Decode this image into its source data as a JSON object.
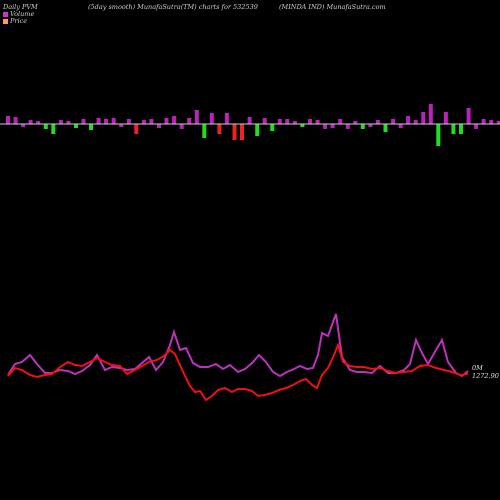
{
  "header": {
    "left": "Daily PVM",
    "middle": "(5day smooth) MunafaSutra(TM) charts for 532539",
    "right": "(MINDA IND) MunafaSutra.com"
  },
  "legend": {
    "volume_label": "Volume",
    "price_label": "Price",
    "volume_color": "#cc33cc",
    "price_color": "#ff9966"
  },
  "last_label": "0M 1272.90",
  "colors": {
    "background": "#000000",
    "baseline": "#cccccc",
    "bar_up": "#bb22bb",
    "bar_down_green": "#22dd22",
    "bar_down_red": "#ee2222",
    "price_line": "#ee1111",
    "volume_line": "#bb33bb"
  },
  "chart_data": {
    "type": "line",
    "bars": [
      {
        "v": 8,
        "c": "up"
      },
      {
        "v": 7,
        "c": "up"
      },
      {
        "v": -3,
        "c": "up"
      },
      {
        "v": 4,
        "c": "up"
      },
      {
        "v": 3,
        "c": "up"
      },
      {
        "v": -5,
        "c": "green"
      },
      {
        "v": -10,
        "c": "green"
      },
      {
        "v": 4,
        "c": "up"
      },
      {
        "v": 3,
        "c": "up"
      },
      {
        "v": -4,
        "c": "green"
      },
      {
        "v": 5,
        "c": "up"
      },
      {
        "v": -6,
        "c": "green"
      },
      {
        "v": 6,
        "c": "up"
      },
      {
        "v": 5,
        "c": "up"
      },
      {
        "v": 6,
        "c": "up"
      },
      {
        "v": -3,
        "c": "up"
      },
      {
        "v": 5,
        "c": "up"
      },
      {
        "v": -10,
        "c": "red"
      },
      {
        "v": 4,
        "c": "up"
      },
      {
        "v": 5,
        "c": "up"
      },
      {
        "v": -4,
        "c": "up"
      },
      {
        "v": 6,
        "c": "up"
      },
      {
        "v": 8,
        "c": "up"
      },
      {
        "v": -5,
        "c": "up"
      },
      {
        "v": 6,
        "c": "up"
      },
      {
        "v": 14,
        "c": "up"
      },
      {
        "v": -14,
        "c": "green"
      },
      {
        "v": 11,
        "c": "up"
      },
      {
        "v": -10,
        "c": "red"
      },
      {
        "v": 11,
        "c": "up"
      },
      {
        "v": -16,
        "c": "red"
      },
      {
        "v": -16,
        "c": "red"
      },
      {
        "v": 7,
        "c": "up"
      },
      {
        "v": -12,
        "c": "green"
      },
      {
        "v": 6,
        "c": "up"
      },
      {
        "v": -7,
        "c": "green"
      },
      {
        "v": 5,
        "c": "up"
      },
      {
        "v": 5,
        "c": "up"
      },
      {
        "v": 3,
        "c": "up"
      },
      {
        "v": -3,
        "c": "green"
      },
      {
        "v": 5,
        "c": "up"
      },
      {
        "v": 4,
        "c": "up"
      },
      {
        "v": -5,
        "c": "up"
      },
      {
        "v": -4,
        "c": "up"
      },
      {
        "v": 5,
        "c": "up"
      },
      {
        "v": -5,
        "c": "up"
      },
      {
        "v": 3,
        "c": "up"
      },
      {
        "v": -5,
        "c": "green"
      },
      {
        "v": -3,
        "c": "up"
      },
      {
        "v": 4,
        "c": "up"
      },
      {
        "v": -8,
        "c": "green"
      },
      {
        "v": 5,
        "c": "up"
      },
      {
        "v": -4,
        "c": "up"
      },
      {
        "v": 8,
        "c": "up"
      },
      {
        "v": 4,
        "c": "up"
      },
      {
        "v": 12,
        "c": "up"
      },
      {
        "v": 20,
        "c": "up"
      },
      {
        "v": -22,
        "c": "green"
      },
      {
        "v": 12,
        "c": "up"
      },
      {
        "v": -10,
        "c": "green"
      },
      {
        "v": -10,
        "c": "green"
      },
      {
        "v": 16,
        "c": "up"
      },
      {
        "v": -5,
        "c": "up"
      },
      {
        "v": 5,
        "c": "up"
      },
      {
        "v": 4,
        "c": "up"
      },
      {
        "v": 3,
        "c": "up"
      },
      {
        "v": 4,
        "c": "up"
      },
      {
        "v": 3,
        "c": "up"
      },
      {
        "v": -3,
        "c": "up"
      },
      {
        "v": 3,
        "c": "up"
      },
      {
        "v": 3,
        "c": "up"
      },
      {
        "v": 4,
        "c": "up"
      },
      {
        "v": 9,
        "c": "up"
      },
      {
        "v": -8,
        "c": "green"
      },
      {
        "v": 8,
        "c": "up"
      },
      {
        "v": 6,
        "c": "up"
      },
      {
        "v": 9,
        "c": "up"
      },
      {
        "v": 12,
        "c": "up"
      },
      {
        "v": -12,
        "c": "red"
      },
      {
        "v": 6,
        "c": "up"
      },
      {
        "v": -4,
        "c": "up"
      },
      {
        "v": 5,
        "c": "up"
      }
    ],
    "price": [
      {
        "x": 8,
        "y": 376
      },
      {
        "x": 15,
        "y": 368
      },
      {
        "x": 22,
        "y": 370
      },
      {
        "x": 30,
        "y": 375
      },
      {
        "x": 37,
        "y": 377
      },
      {
        "x": 45,
        "y": 375
      },
      {
        "x": 52,
        "y": 374
      },
      {
        "x": 60,
        "y": 367
      },
      {
        "x": 68,
        "y": 362
      },
      {
        "x": 75,
        "y": 365
      },
      {
        "x": 82,
        "y": 366
      },
      {
        "x": 90,
        "y": 362
      },
      {
        "x": 97,
        "y": 358
      },
      {
        "x": 105,
        "y": 362
      },
      {
        "x": 112,
        "y": 365
      },
      {
        "x": 120,
        "y": 366
      },
      {
        "x": 127,
        "y": 374
      },
      {
        "x": 135,
        "y": 370
      },
      {
        "x": 142,
        "y": 366
      },
      {
        "x": 149,
        "y": 362
      },
      {
        "x": 157,
        "y": 360
      },
      {
        "x": 164,
        "y": 356
      },
      {
        "x": 170,
        "y": 350
      },
      {
        "x": 175,
        "y": 354
      },
      {
        "x": 180,
        "y": 365
      },
      {
        "x": 185,
        "y": 376
      },
      {
        "x": 190,
        "y": 386
      },
      {
        "x": 195,
        "y": 392
      },
      {
        "x": 200,
        "y": 391
      },
      {
        "x": 206,
        "y": 400
      },
      {
        "x": 212,
        "y": 396
      },
      {
        "x": 218,
        "y": 390
      },
      {
        "x": 225,
        "y": 388
      },
      {
        "x": 232,
        "y": 392
      },
      {
        "x": 238,
        "y": 389
      },
      {
        "x": 245,
        "y": 389
      },
      {
        "x": 252,
        "y": 391
      },
      {
        "x": 258,
        "y": 396
      },
      {
        "x": 265,
        "y": 395
      },
      {
        "x": 272,
        "y": 393
      },
      {
        "x": 279,
        "y": 390
      },
      {
        "x": 286,
        "y": 388
      },
      {
        "x": 293,
        "y": 385
      },
      {
        "x": 300,
        "y": 381
      },
      {
        "x": 306,
        "y": 379
      },
      {
        "x": 312,
        "y": 385
      },
      {
        "x": 317,
        "y": 388
      },
      {
        "x": 322,
        "y": 375
      },
      {
        "x": 328,
        "y": 368
      },
      {
        "x": 334,
        "y": 355
      },
      {
        "x": 338,
        "y": 345
      },
      {
        "x": 343,
        "y": 362
      },
      {
        "x": 350,
        "y": 366
      },
      {
        "x": 357,
        "y": 367
      },
      {
        "x": 364,
        "y": 367
      },
      {
        "x": 372,
        "y": 369
      },
      {
        "x": 380,
        "y": 368
      },
      {
        "x": 388,
        "y": 371
      },
      {
        "x": 396,
        "y": 373
      },
      {
        "x": 404,
        "y": 372
      },
      {
        "x": 412,
        "y": 371
      },
      {
        "x": 420,
        "y": 366
      },
      {
        "x": 428,
        "y": 365
      },
      {
        "x": 436,
        "y": 368
      },
      {
        "x": 444,
        "y": 370
      },
      {
        "x": 452,
        "y": 372
      },
      {
        "x": 460,
        "y": 375
      },
      {
        "x": 468,
        "y": 374
      }
    ],
    "volume": [
      {
        "x": 8,
        "y": 375
      },
      {
        "x": 15,
        "y": 364
      },
      {
        "x": 22,
        "y": 362
      },
      {
        "x": 30,
        "y": 355
      },
      {
        "x": 37,
        "y": 364
      },
      {
        "x": 45,
        "y": 373
      },
      {
        "x": 52,
        "y": 373
      },
      {
        "x": 60,
        "y": 370
      },
      {
        "x": 68,
        "y": 371
      },
      {
        "x": 75,
        "y": 374
      },
      {
        "x": 82,
        "y": 371
      },
      {
        "x": 90,
        "y": 365
      },
      {
        "x": 97,
        "y": 355
      },
      {
        "x": 105,
        "y": 370
      },
      {
        "x": 112,
        "y": 367
      },
      {
        "x": 120,
        "y": 368
      },
      {
        "x": 127,
        "y": 370
      },
      {
        "x": 135,
        "y": 369
      },
      {
        "x": 142,
        "y": 363
      },
      {
        "x": 149,
        "y": 357
      },
      {
        "x": 156,
        "y": 370
      },
      {
        "x": 163,
        "y": 362
      },
      {
        "x": 170,
        "y": 345
      },
      {
        "x": 174,
        "y": 332
      },
      {
        "x": 180,
        "y": 350
      },
      {
        "x": 186,
        "y": 348
      },
      {
        "x": 193,
        "y": 363
      },
      {
        "x": 200,
        "y": 367
      },
      {
        "x": 208,
        "y": 367
      },
      {
        "x": 216,
        "y": 364
      },
      {
        "x": 223,
        "y": 369
      },
      {
        "x": 230,
        "y": 365
      },
      {
        "x": 238,
        "y": 372
      },
      {
        "x": 245,
        "y": 369
      },
      {
        "x": 252,
        "y": 363
      },
      {
        "x": 259,
        "y": 355
      },
      {
        "x": 266,
        "y": 362
      },
      {
        "x": 273,
        "y": 372
      },
      {
        "x": 280,
        "y": 376
      },
      {
        "x": 287,
        "y": 372
      },
      {
        "x": 294,
        "y": 369
      },
      {
        "x": 300,
        "y": 366
      },
      {
        "x": 307,
        "y": 369
      },
      {
        "x": 313,
        "y": 368
      },
      {
        "x": 318,
        "y": 355
      },
      {
        "x": 322,
        "y": 333
      },
      {
        "x": 328,
        "y": 336
      },
      {
        "x": 336,
        "y": 314
      },
      {
        "x": 342,
        "y": 357
      },
      {
        "x": 350,
        "y": 370
      },
      {
        "x": 357,
        "y": 372
      },
      {
        "x": 364,
        "y": 372
      },
      {
        "x": 372,
        "y": 373
      },
      {
        "x": 380,
        "y": 366
      },
      {
        "x": 388,
        "y": 373
      },
      {
        "x": 396,
        "y": 373
      },
      {
        "x": 404,
        "y": 370
      },
      {
        "x": 410,
        "y": 364
      },
      {
        "x": 416,
        "y": 340
      },
      {
        "x": 422,
        "y": 353
      },
      {
        "x": 428,
        "y": 364
      },
      {
        "x": 436,
        "y": 350
      },
      {
        "x": 442,
        "y": 340
      },
      {
        "x": 448,
        "y": 362
      },
      {
        "x": 456,
        "y": 373
      },
      {
        "x": 462,
        "y": 376
      },
      {
        "x": 468,
        "y": 371
      }
    ]
  }
}
